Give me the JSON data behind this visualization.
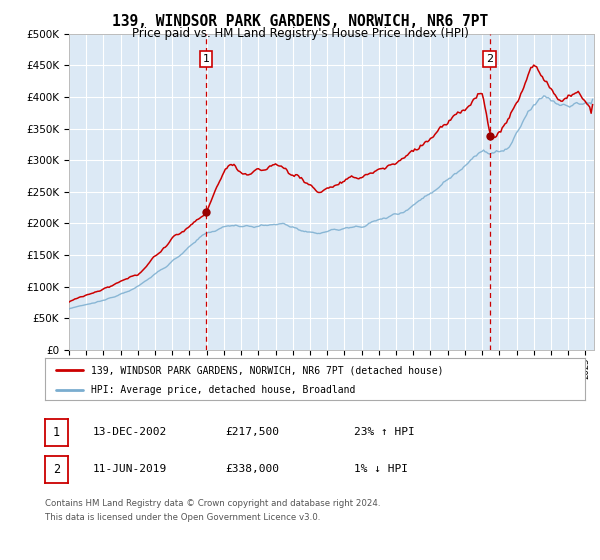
{
  "title": "139, WINDSOR PARK GARDENS, NORWICH, NR6 7PT",
  "subtitle": "Price paid vs. HM Land Registry's House Price Index (HPI)",
  "legend_line1": "139, WINDSOR PARK GARDENS, NORWICH, NR6 7PT (detached house)",
  "legend_line2": "HPI: Average price, detached house, Broadland",
  "footer1": "Contains HM Land Registry data © Crown copyright and database right 2024.",
  "footer2": "This data is licensed under the Open Government Licence v3.0.",
  "sale1_date": "13-DEC-2002",
  "sale1_price": "£217,500",
  "sale1_hpi": "23% ↑ HPI",
  "sale2_date": "11-JUN-2019",
  "sale2_price": "£338,000",
  "sale2_hpi": "1% ↓ HPI",
  "sale1_x": 2002.96,
  "sale1_y": 217500,
  "sale2_x": 2019.44,
  "sale2_y": 338000,
  "ylim": [
    0,
    500000
  ],
  "xlim_start": 1995,
  "xlim_end": 2025.5,
  "background_color": "#dce9f5",
  "grid_color": "#ffffff",
  "red_line_color": "#cc0000",
  "blue_line_color": "#7aadcf",
  "dashed_line_color": "#cc0000",
  "marker_color": "#990000",
  "box_edge_color": "#cc0000"
}
